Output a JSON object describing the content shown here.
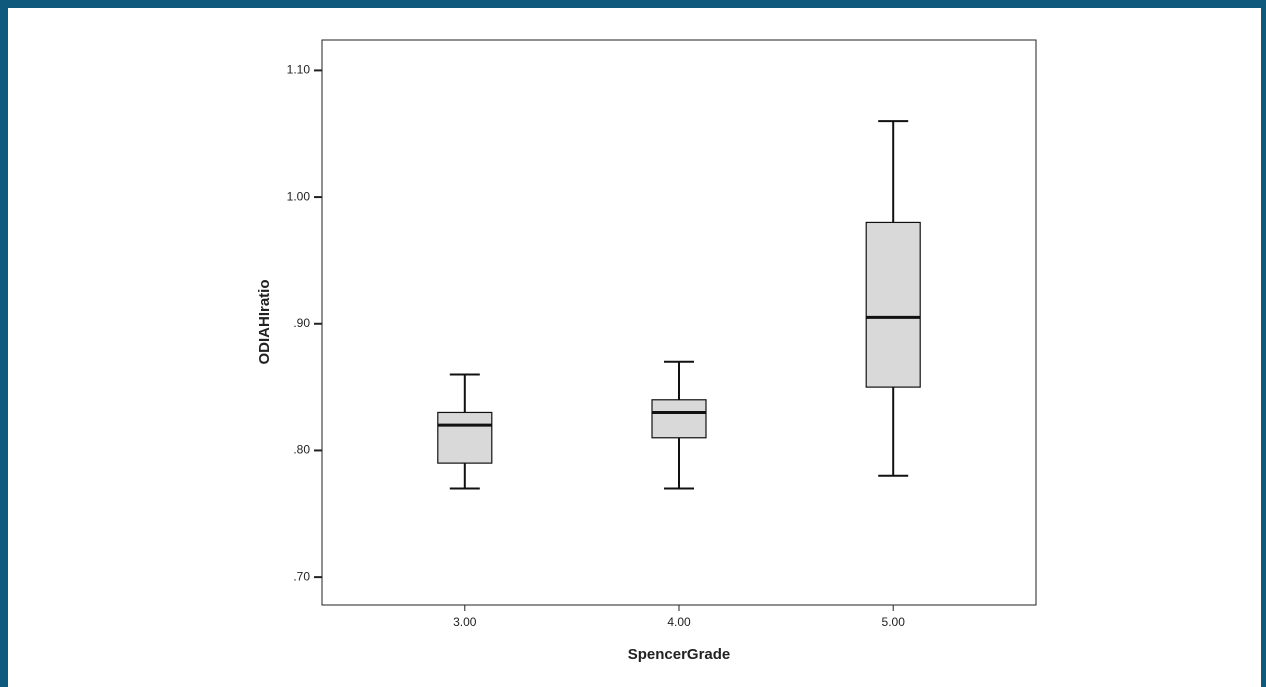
{
  "chart_data": {
    "type": "box",
    "x_label": "SpencerGrade",
    "y_label": "ODIAHIratio",
    "categories": [
      "3.00",
      "4.00",
      "5.00"
    ],
    "min": [
      0.77,
      0.77,
      0.78
    ],
    "q1": [
      0.79,
      0.81,
      0.85
    ],
    "median": [
      0.82,
      0.83,
      0.905
    ],
    "q3": [
      0.83,
      0.84,
      0.98
    ],
    "max": [
      0.86,
      0.87,
      1.06
    ],
    "color": "#d9d9d9",
    "ylim": [
      0.678,
      1.124
    ],
    "yticks": [
      {
        "value": 0.7,
        "label": ".70"
      },
      {
        "value": 0.8,
        "label": ".80"
      },
      {
        "value": 0.9,
        "label": ".90"
      },
      {
        "value": 1.0,
        "label": "1.00"
      },
      {
        "value": 1.1,
        "label": "1.10"
      }
    ]
  }
}
